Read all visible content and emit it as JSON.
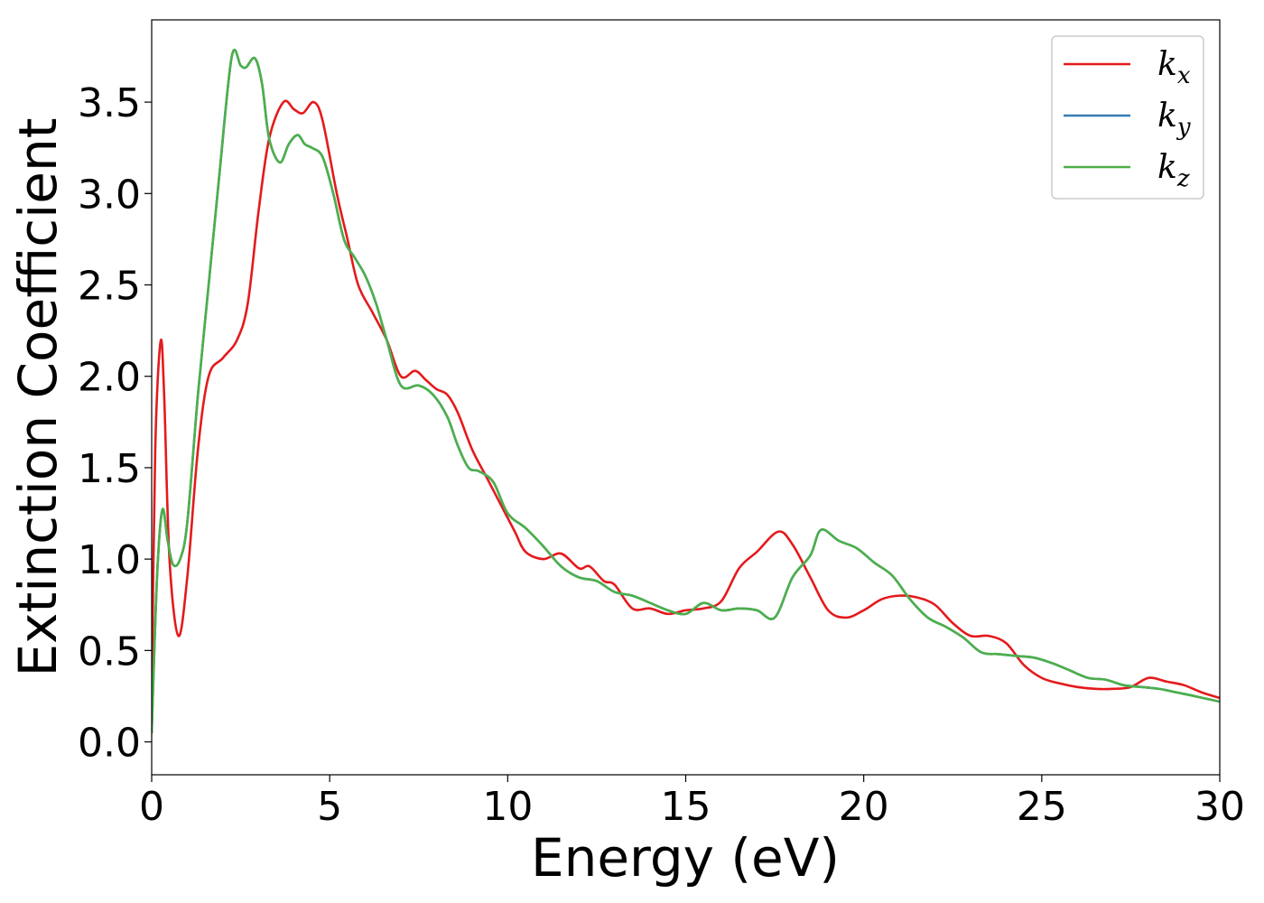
{
  "chart_data": {
    "type": "line",
    "xlabel": "Energy (eV)",
    "ylabel": "Extinction Coefficient",
    "xlim": [
      0,
      30
    ],
    "ylim": [
      -0.18,
      3.95
    ],
    "xticks": [
      0,
      5,
      10,
      15,
      20,
      25,
      30
    ],
    "xtick_labels": [
      "0",
      "5",
      "10",
      "15",
      "20",
      "25",
      "30"
    ],
    "yticks": [
      0.0,
      0.5,
      1.0,
      1.5,
      2.0,
      2.5,
      3.0,
      3.5
    ],
    "ytick_labels": [
      "0.0",
      "0.5",
      "1.0",
      "1.5",
      "2.0",
      "2.5",
      "3.0",
      "3.5"
    ],
    "grid": false,
    "legend_position": "top-right",
    "series": [
      {
        "name": "k_x",
        "label_base": "k",
        "label_sub": "x",
        "color": "#e41a1c",
        "x": [
          0.0,
          0.1,
          0.25,
          0.35,
          0.5,
          0.75,
          1.0,
          1.3,
          1.6,
          2.0,
          2.4,
          2.7,
          3.0,
          3.3,
          3.7,
          4.0,
          4.25,
          4.55,
          4.8,
          5.2,
          5.5,
          5.8,
          6.2,
          6.6,
          7.0,
          7.4,
          7.7,
          8.0,
          8.3,
          8.6,
          9.0,
          9.4,
          9.8,
          10.2,
          10.5,
          11.0,
          11.5,
          12.0,
          12.3,
          12.7,
          13.0,
          13.5,
          14.0,
          14.5,
          15.0,
          15.5,
          16.0,
          16.5,
          17.0,
          17.6,
          18.0,
          18.5,
          19.0,
          19.5,
          20.0,
          20.5,
          21.0,
          21.5,
          22.0,
          22.5,
          23.0,
          23.5,
          24.0,
          24.5,
          25.0,
          25.5,
          26.0,
          26.5,
          27.0,
          27.5,
          28.0,
          28.5,
          29.0,
          29.5,
          30.0
        ],
        "y": [
          0.2,
          1.6,
          2.19,
          1.9,
          1.0,
          0.58,
          0.9,
          1.6,
          2.0,
          2.1,
          2.2,
          2.4,
          2.9,
          3.3,
          3.5,
          3.46,
          3.44,
          3.5,
          3.4,
          3.0,
          2.75,
          2.5,
          2.35,
          2.2,
          2.0,
          2.03,
          1.98,
          1.93,
          1.9,
          1.8,
          1.6,
          1.45,
          1.3,
          1.15,
          1.04,
          1.0,
          1.03,
          0.95,
          0.96,
          0.88,
          0.86,
          0.73,
          0.73,
          0.7,
          0.72,
          0.73,
          0.77,
          0.95,
          1.04,
          1.15,
          1.08,
          0.9,
          0.72,
          0.68,
          0.72,
          0.78,
          0.8,
          0.79,
          0.75,
          0.65,
          0.58,
          0.58,
          0.54,
          0.42,
          0.35,
          0.32,
          0.3,
          0.29,
          0.29,
          0.3,
          0.35,
          0.33,
          0.31,
          0.27,
          0.24
        ]
      },
      {
        "name": "k_y",
        "label_base": "k",
        "label_sub": "y",
        "color": "#377eb8",
        "x": [
          0.0,
          0.15,
          0.3,
          0.45,
          0.6,
          0.8,
          1.0,
          1.3,
          1.6,
          1.9,
          2.25,
          2.5,
          2.65,
          2.9,
          3.1,
          3.3,
          3.6,
          3.85,
          4.1,
          4.3,
          4.5,
          4.8,
          5.1,
          5.4,
          5.7,
          6.0,
          6.3,
          6.6,
          7.0,
          7.5,
          7.9,
          8.3,
          8.6,
          8.9,
          9.2,
          9.6,
          10.0,
          10.5,
          11.0,
          11.5,
          12.0,
          12.5,
          13.0,
          13.5,
          14.0,
          14.5,
          15.0,
          15.5,
          16.0,
          16.5,
          17.0,
          17.5,
          18.0,
          18.5,
          18.8,
          19.3,
          19.8,
          20.3,
          20.8,
          21.3,
          21.8,
          22.3,
          22.8,
          23.3,
          23.8,
          24.3,
          24.8,
          25.3,
          25.8,
          26.3,
          26.8,
          27.3,
          27.8,
          28.3,
          28.8,
          29.3,
          30.0
        ],
        "y": [
          0.05,
          0.9,
          1.27,
          1.1,
          0.97,
          1.0,
          1.2,
          1.9,
          2.5,
          3.1,
          3.75,
          3.7,
          3.69,
          3.74,
          3.6,
          3.3,
          3.17,
          3.27,
          3.32,
          3.27,
          3.25,
          3.2,
          3.0,
          2.75,
          2.65,
          2.55,
          2.4,
          2.2,
          1.95,
          1.95,
          1.9,
          1.78,
          1.62,
          1.5,
          1.48,
          1.42,
          1.25,
          1.17,
          1.07,
          0.96,
          0.9,
          0.88,
          0.82,
          0.8,
          0.76,
          0.72,
          0.7,
          0.76,
          0.72,
          0.73,
          0.72,
          0.68,
          0.9,
          1.02,
          1.16,
          1.1,
          1.06,
          0.98,
          0.91,
          0.78,
          0.68,
          0.63,
          0.57,
          0.49,
          0.48,
          0.47,
          0.46,
          0.43,
          0.39,
          0.35,
          0.34,
          0.31,
          0.3,
          0.29,
          0.27,
          0.25,
          0.22
        ]
      },
      {
        "name": "k_z",
        "label_base": "k",
        "label_sub": "z",
        "color": "#4daf4a",
        "x": [
          0.0,
          0.15,
          0.3,
          0.45,
          0.6,
          0.8,
          1.0,
          1.3,
          1.6,
          1.9,
          2.25,
          2.5,
          2.65,
          2.9,
          3.1,
          3.3,
          3.6,
          3.85,
          4.1,
          4.3,
          4.5,
          4.8,
          5.1,
          5.4,
          5.7,
          6.0,
          6.3,
          6.6,
          7.0,
          7.5,
          7.9,
          8.3,
          8.6,
          8.9,
          9.2,
          9.6,
          10.0,
          10.5,
          11.0,
          11.5,
          12.0,
          12.5,
          13.0,
          13.5,
          14.0,
          14.5,
          15.0,
          15.5,
          16.0,
          16.5,
          17.0,
          17.5,
          18.0,
          18.5,
          18.8,
          19.3,
          19.8,
          20.3,
          20.8,
          21.3,
          21.8,
          22.3,
          22.8,
          23.3,
          23.8,
          24.3,
          24.8,
          25.3,
          25.8,
          26.3,
          26.8,
          27.3,
          27.8,
          28.3,
          28.8,
          29.3,
          30.0
        ],
        "y": [
          0.05,
          0.9,
          1.27,
          1.1,
          0.97,
          1.0,
          1.2,
          1.9,
          2.5,
          3.1,
          3.75,
          3.7,
          3.69,
          3.74,
          3.6,
          3.3,
          3.17,
          3.27,
          3.32,
          3.27,
          3.25,
          3.2,
          3.0,
          2.75,
          2.65,
          2.55,
          2.4,
          2.2,
          1.95,
          1.95,
          1.9,
          1.78,
          1.62,
          1.5,
          1.48,
          1.42,
          1.25,
          1.17,
          1.07,
          0.96,
          0.9,
          0.88,
          0.82,
          0.8,
          0.76,
          0.72,
          0.7,
          0.76,
          0.72,
          0.73,
          0.72,
          0.68,
          0.9,
          1.02,
          1.16,
          1.1,
          1.06,
          0.98,
          0.91,
          0.78,
          0.68,
          0.63,
          0.57,
          0.49,
          0.48,
          0.47,
          0.46,
          0.43,
          0.39,
          0.35,
          0.34,
          0.31,
          0.3,
          0.29,
          0.27,
          0.25,
          0.22
        ]
      }
    ]
  }
}
